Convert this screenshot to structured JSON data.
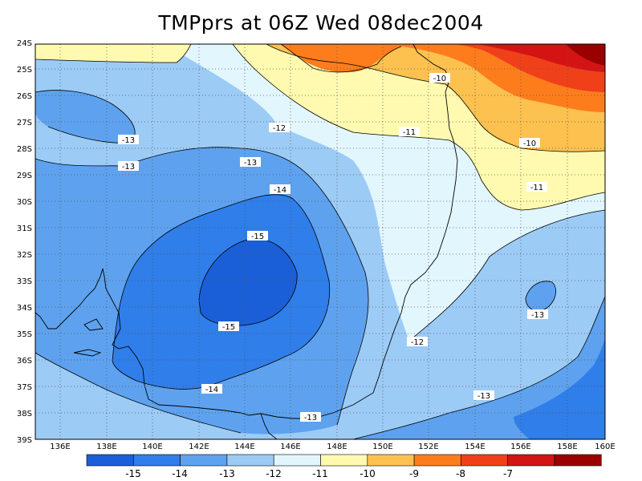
{
  "title": "TMPprs at 06Z Wed 08dec2004",
  "lat_labels": [
    "24S",
    "25S",
    "26S",
    "27S",
    "28S",
    "29S",
    "30S",
    "31S",
    "32S",
    "33S",
    "34S",
    "35S",
    "36S",
    "37S",
    "38S",
    "39S"
  ],
  "lon_labels": [
    "136E",
    "138E",
    "140E",
    "142E",
    "144E",
    "146E",
    "148E",
    "150E",
    "152E",
    "154E",
    "156E",
    "158E",
    "160E"
  ],
  "contour_labels": [
    "-10",
    "-12",
    "-11",
    "-13",
    "-10",
    "-13",
    "-13",
    "-11",
    "-14",
    "-15",
    "-15",
    "-13",
    "-12",
    "-14",
    "-13",
    "-13"
  ],
  "colorbar": {
    "colors": [
      "#1a5fd8",
      "#2f7eea",
      "#5ea2ef",
      "#9ccbf6",
      "#e2f6fd",
      "#fffab0",
      "#fdc150",
      "#fd7d1c",
      "#f0401a",
      "#d41414",
      "#9a0000"
    ],
    "labels": [
      "-15",
      "-14",
      "-13",
      "-12",
      "-11",
      "-10",
      "-9",
      "-8",
      "-7"
    ]
  }
}
